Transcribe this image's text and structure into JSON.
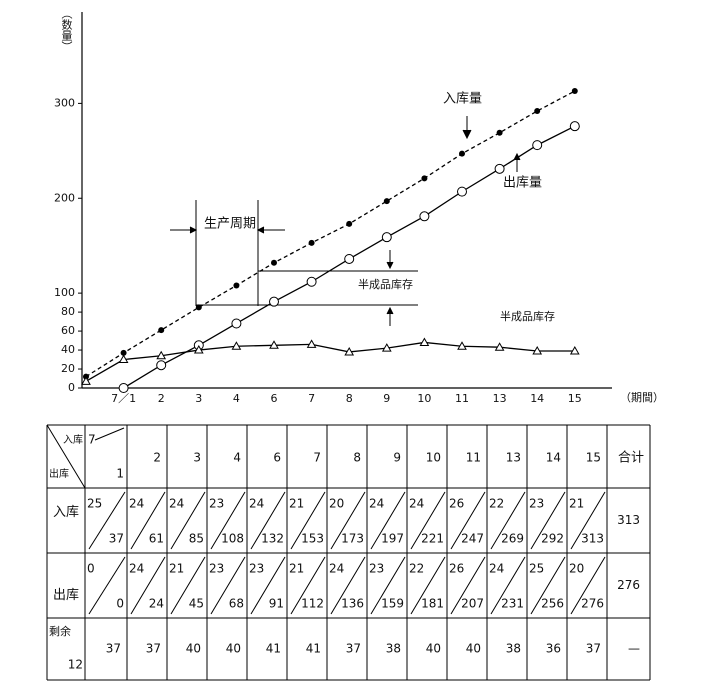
{
  "chart_data": {
    "type": "line",
    "categories": [
      null,
      "7／1",
      "2",
      "3",
      "4",
      "6",
      "7",
      "8",
      "9",
      "10",
      "11",
      "13",
      "14",
      "15"
    ],
    "series": [
      {
        "name": "入库量",
        "color": "#000000",
        "dash": true,
        "marker": "filled-circle",
        "values": [
          12,
          37,
          61,
          85,
          108,
          132,
          153,
          173,
          197,
          221,
          247,
          269,
          292,
          313
        ]
      },
      {
        "name": "出库量",
        "color": "#000000",
        "dash": false,
        "marker": "open-circle",
        "values": [
          null,
          0,
          24,
          45,
          68,
          91,
          112,
          136,
          159,
          181,
          207,
          231,
          256,
          276
        ]
      },
      {
        "name": "半成品库存",
        "color": "#000000",
        "dash": false,
        "marker": "triangle",
        "values": [
          7,
          30,
          34,
          40,
          44,
          45,
          46,
          38,
          42,
          48,
          44,
          43,
          39,
          39
        ]
      }
    ],
    "ylim": [
      0,
      390
    ],
    "yticks": [
      0,
      20,
      40,
      60,
      80,
      100,
      200,
      300
    ],
    "x_label": "（期間）",
    "y_label": "（数量）",
    "annotations": [
      "生产周期",
      "半成品库存"
    ]
  },
  "table": {
    "corner": {
      "top": "入库",
      "bottom": "出库"
    },
    "first_header": {
      "top": "7",
      "bottom": "1"
    },
    "headers": [
      "2",
      "3",
      "4",
      "6",
      "7",
      "8",
      "9",
      "10",
      "11",
      "13",
      "14",
      "15",
      "合计"
    ],
    "rows": [
      {
        "label": "入库",
        "cells": [
          [
            "25",
            "37"
          ],
          [
            "24",
            "61"
          ],
          [
            "24",
            "85"
          ],
          [
            "23",
            "108"
          ],
          [
            "24",
            "132"
          ],
          [
            "21",
            "153"
          ],
          [
            "20",
            "173"
          ],
          [
            "24",
            "197"
          ],
          [
            "24",
            "221"
          ],
          [
            "26",
            "247"
          ],
          [
            "22",
            "269"
          ],
          [
            "23",
            "292"
          ],
          [
            "21",
            "313"
          ]
        ],
        "total": "313"
      },
      {
        "label": "出库",
        "cells": [
          [
            "0",
            "0"
          ],
          [
            "24",
            "24"
          ],
          [
            "21",
            "45"
          ],
          [
            "23",
            "68"
          ],
          [
            "23",
            "91"
          ],
          [
            "21",
            "112"
          ],
          [
            "24",
            "136"
          ],
          [
            "23",
            "159"
          ],
          [
            "22",
            "181"
          ],
          [
            "26",
            "207"
          ],
          [
            "24",
            "231"
          ],
          [
            "25",
            "256"
          ],
          [
            "20",
            "276"
          ]
        ],
        "total": "276"
      }
    ],
    "remain": {
      "label": "剩余",
      "start": "12",
      "cells": [
        "37",
        "37",
        "40",
        "40",
        "41",
        "41",
        "37",
        "38",
        "40",
        "40",
        "38",
        "36",
        "37"
      ],
      "total": "—"
    }
  }
}
